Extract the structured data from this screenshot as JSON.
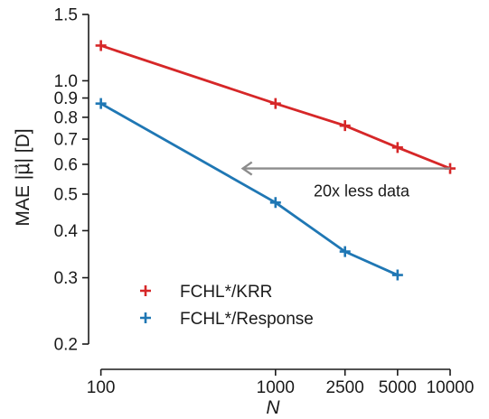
{
  "chart_data": {
    "type": "line",
    "xscale": "log",
    "yscale": "log",
    "xlabel": "N",
    "ylabel": "MAE |μ⃗| [D]",
    "xlim": [
      85,
      11000
    ],
    "ylim": [
      0.2,
      1.5
    ],
    "xticks": [
      100,
      1000,
      2500,
      5000,
      10000
    ],
    "xtick_labels": [
      "100",
      "1000",
      "2500",
      "5000",
      "10000"
    ],
    "yticks": [
      0.2,
      0.3,
      0.4,
      0.5,
      0.6,
      0.7,
      0.8,
      0.9,
      1.0,
      1.5
    ],
    "ytick_labels": [
      "0.2",
      "0.3",
      "0.4",
      "0.5",
      "0.6",
      "0.7",
      "0.8",
      "0.9",
      "1.0",
      "1.5"
    ],
    "grid": false,
    "legend_position": "lower-left",
    "series": [
      {
        "name": "FCHL*/KRR",
        "color": "#d62728",
        "marker": "plus",
        "x": [
          100,
          1000,
          2500,
          5000,
          10000
        ],
        "y": [
          1.24,
          0.87,
          0.76,
          0.665,
          0.585
        ]
      },
      {
        "name": "FCHL*/Response",
        "color": "#1f77b4",
        "marker": "plus",
        "x": [
          100,
          1000,
          2500,
          5000
        ],
        "y": [
          0.87,
          0.475,
          0.352,
          0.305
        ]
      }
    ],
    "annotation": {
      "text": "20x less data",
      "color": "#8c8c8c",
      "arrow_from": [
        10000,
        0.585
      ],
      "arrow_to": [
        650,
        0.585
      ]
    }
  }
}
